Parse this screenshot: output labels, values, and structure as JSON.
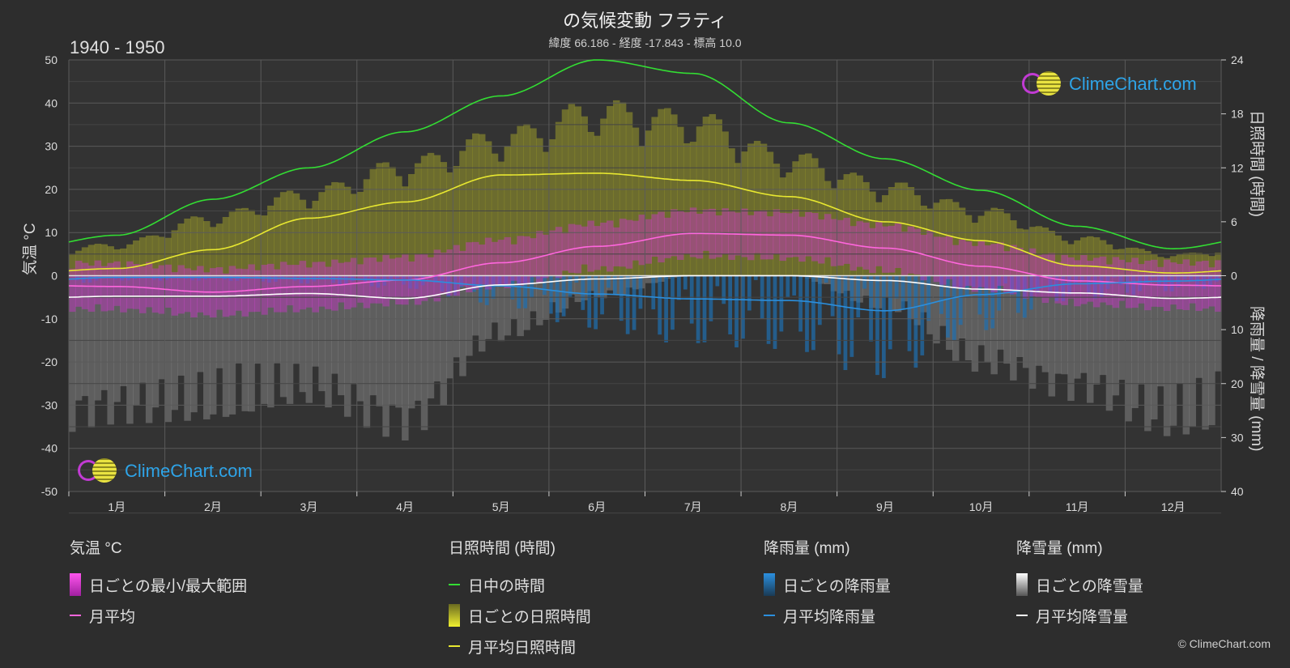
{
  "header": {
    "title": "の気候変動 フラティ",
    "subtitle": "緯度 66.186 - 経度 -17.843 - 標高 10.0",
    "period": "1940 - 1950"
  },
  "axes": {
    "left_label": "気温 °C",
    "right_top_label": "日照時間 (時間)",
    "right_bottom_label": "降雨量 / 降雪量 (mm)"
  },
  "logo": {
    "text": "ClimeChart.com"
  },
  "legend": {
    "temp": {
      "title": "気温 °C",
      "range": "日ごとの最小/最大範囲",
      "avg": "月平均"
    },
    "sun": {
      "title": "日照時間 (時間)",
      "daylight": "日中の時間",
      "daily": "日ごとの日照時間",
      "avg": "月平均日照時間"
    },
    "rain": {
      "title": "降雨量 (mm)",
      "daily": "日ごとの降雨量",
      "avg": "月平均降雨量"
    },
    "snow": {
      "title": "降雪量 (mm)",
      "daily": "日ごとの降雪量",
      "avg": "月平均降雪量"
    }
  },
  "copyright": "© ClimeChart.com",
  "colors": {
    "daylight": "#33dd33",
    "sunshine_avg": "#e8e830",
    "sunshine_fill": "#9a9a2a",
    "temp_avg": "#ff66dd",
    "temp_range": "#cc33cc",
    "rain_avg": "#2b8fdd",
    "rain_fill": "#1e6fb0",
    "snow_avg": "#ffffff",
    "snow_fill": "#8a8a8a"
  },
  "chart_data": {
    "type": "line",
    "categories": [
      "1月",
      "2月",
      "3月",
      "4月",
      "5月",
      "6月",
      "7月",
      "8月",
      "9月",
      "10月",
      "11月",
      "12月"
    ],
    "y_left": {
      "ticks": [
        50,
        40,
        30,
        20,
        10,
        0,
        -10,
        -20,
        -30,
        -40,
        -50
      ],
      "range": [
        -50,
        50
      ]
    },
    "y_right_top": {
      "ticks": [
        24,
        18,
        12,
        6,
        0
      ],
      "range": [
        0,
        24
      ]
    },
    "y_right_bottom": {
      "ticks": [
        0,
        10,
        20,
        30,
        40
      ],
      "range": [
        0,
        40
      ]
    },
    "series": [
      {
        "name": "日中の時間",
        "axis": "sunshine_hours",
        "values": [
          4.5,
          8.5,
          12.0,
          16.0,
          20.0,
          24.0,
          22.5,
          17.0,
          13.0,
          9.5,
          5.5,
          3.0
        ]
      },
      {
        "name": "月平均日照時間",
        "axis": "sunshine_hours",
        "values": [
          0.8,
          2.9,
          6.4,
          8.2,
          11.2,
          11.4,
          10.6,
          8.8,
          6.0,
          3.9,
          1.1,
          0.3
        ]
      },
      {
        "name": "月平均",
        "axis": "temperature_c",
        "values": [
          -2.5,
          -3.8,
          -2.5,
          -1.0,
          3.0,
          6.8,
          9.8,
          9.4,
          6.4,
          2.2,
          -1.2,
          -2.2
        ]
      },
      {
        "name": "月平均降雨量",
        "axis": "precip_mm",
        "values": [
          0.3,
          0.3,
          0.5,
          0.8,
          1.9,
          3.4,
          4.3,
          4.6,
          6.5,
          3.5,
          1.5,
          1.0
        ]
      },
      {
        "name": "月平均降雪量",
        "axis": "precip_mm",
        "values": [
          3.8,
          3.8,
          3.3,
          4.2,
          1.7,
          0.6,
          0.0,
          0.0,
          0.9,
          2.5,
          3.2,
          4.2
        ]
      }
    ]
  }
}
